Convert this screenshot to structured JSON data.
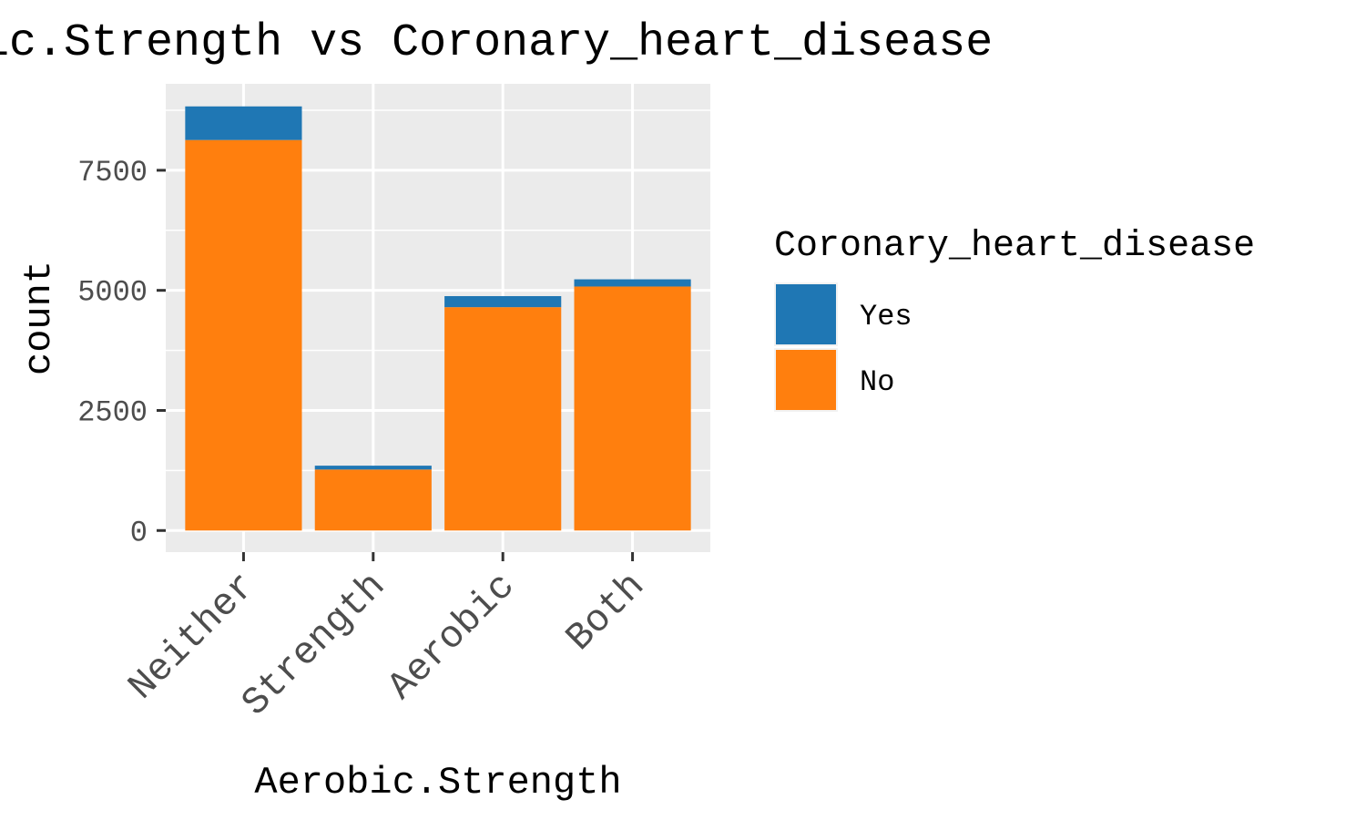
{
  "chart_data": {
    "type": "bar",
    "stacked": true,
    "title": "Aerobic.Strength vs Coronary_heart_disease",
    "xlabel": "Aerobic.Strength",
    "ylabel": "count",
    "categories": [
      "Neither",
      "Strength",
      "Aerobic",
      "Both"
    ],
    "series": [
      {
        "name": "No",
        "color": "#ff7f0e",
        "values": [
          8130,
          1270,
          4650,
          5080
        ]
      },
      {
        "name": "Yes",
        "color": "#1f77b4",
        "values": [
          700,
          80,
          230,
          150
        ]
      }
    ],
    "ylim": [
      -450,
      9300
    ],
    "yticks": [
      {
        "value": 0,
        "label": "0"
      },
      {
        "value": 2500,
        "label": "2500"
      },
      {
        "value": 5000,
        "label": "5000"
      },
      {
        "value": 7500,
        "label": "7500"
      }
    ],
    "grid": true,
    "panel_background": "#ebebeb",
    "legend": {
      "title": "Coronary_heart_disease",
      "position": "right",
      "entries": [
        {
          "label": "Yes",
          "color": "#1f77b4"
        },
        {
          "label": "No",
          "color": "#ff7f0e"
        }
      ]
    }
  }
}
